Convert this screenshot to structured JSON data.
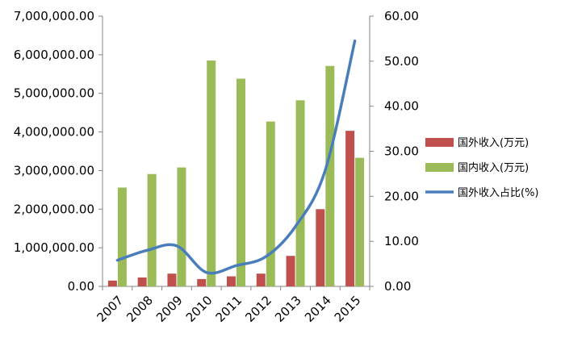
{
  "chart_data": {
    "type": "bar",
    "categories": [
      "2007",
      "2008",
      "2009",
      "2010",
      "2011",
      "2012",
      "2013",
      "2014",
      "2015"
    ],
    "series": [
      {
        "name": "国外收入(万元)",
        "type": "bar",
        "axis": "left",
        "color": "#c0504d",
        "values": [
          150000,
          230000,
          330000,
          190000,
          260000,
          330000,
          790000,
          2000000,
          4030000
        ]
      },
      {
        "name": "国内收入(万元)",
        "type": "bar",
        "axis": "left",
        "color": "#9bbb59",
        "values": [
          2560000,
          2910000,
          3080000,
          5850000,
          5380000,
          4270000,
          4820000,
          5710000,
          3330000
        ]
      },
      {
        "name": "国外收入占比(%)",
        "type": "line",
        "axis": "right",
        "color": "#4a7ebb",
        "values": [
          5.8,
          8.0,
          9.0,
          3.1,
          4.6,
          6.6,
          13.3,
          25.7,
          54.5
        ]
      }
    ],
    "ylim_left": [
      0,
      7000000
    ],
    "yticks_left": [
      "0.00",
      "1,000,000.00",
      "2,000,000.00",
      "3,000,000.00",
      "4,000,000.00",
      "5,000,000.00",
      "6,000,000.00",
      "7,000,000.00"
    ],
    "ylim_right": [
      0,
      60
    ],
    "yticks_right": [
      "0.00",
      "10.00",
      "20.00",
      "30.00",
      "40.00",
      "50.00",
      "60.00"
    ],
    "legend_position": "right",
    "grid": false
  }
}
